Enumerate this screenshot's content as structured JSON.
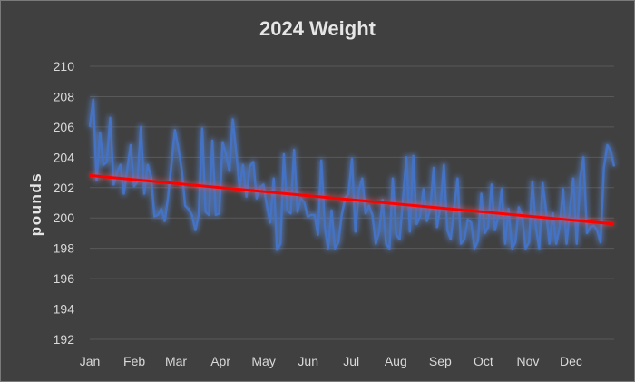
{
  "chart_data": {
    "type": "line",
    "title": "2024 Weight",
    "xlabel": "",
    "ylabel": "pounds",
    "ylim": [
      192,
      210
    ],
    "y_ticks": [
      192,
      194,
      196,
      198,
      200,
      202,
      204,
      206,
      208,
      210
    ],
    "x_ticks": [
      "Jan",
      "Feb",
      "Mar",
      "Apr",
      "May",
      "Jun",
      "Jul",
      "Aug",
      "Sep",
      "Oct",
      "Nov",
      "Dec"
    ],
    "x_domain_days": [
      1,
      366
    ],
    "grid": true,
    "legend": "none",
    "colors": {
      "background": "#404040",
      "series": "#4472c4",
      "trendline": "#ff0000",
      "grid": "#595959",
      "text": "#d9d9d9"
    },
    "series": [
      {
        "values": [
          206.0,
          207.8,
          202.5,
          205.6,
          203.5,
          203.7,
          206.6,
          202.2,
          203.0,
          203.5,
          201.6,
          203.2,
          204.8,
          202.1,
          202.4,
          206.0,
          201.6,
          203.5,
          202.7,
          200.1,
          200.2,
          200.6,
          199.8,
          201.4,
          203.6,
          205.8,
          204.6,
          203.2,
          200.8,
          200.6,
          200.2,
          199.2,
          200.2,
          205.9,
          200.4,
          200.2,
          205.1,
          200.2,
          200.3,
          205.0,
          204.2,
          203.1,
          206.5,
          204.3,
          202.0,
          203.5,
          201.4,
          203.4,
          203.7,
          201.3,
          202.0,
          202.2,
          200.8,
          199.7,
          202.6,
          197.9,
          198.3,
          204.2,
          200.5,
          200.3,
          204.5,
          200.4,
          201.3,
          201.0,
          200.1,
          200.2,
          200.2,
          198.9,
          203.8,
          199.4,
          198.0,
          200.5,
          198.0,
          198.4,
          200.2,
          201.3,
          201.6,
          203.9,
          199.1,
          201.8,
          202.6,
          200.3,
          200.8,
          200.2,
          198.3,
          199.1,
          201.2,
          198.3,
          198.0,
          202.6,
          198.9,
          198.6,
          201.3,
          204.0,
          199.1,
          204.1,
          199.6,
          200.1,
          201.9,
          199.8,
          200.6,
          203.3,
          199.4,
          200.8,
          203.5,
          199.2,
          198.6,
          200.6,
          202.6,
          198.3,
          198.6,
          199.9,
          199.7,
          198.0,
          198.5,
          201.6,
          199.0,
          199.4,
          202.2,
          199.2,
          200.1,
          201.9,
          198.3,
          200.6,
          198.0,
          198.4,
          200.7,
          200.1,
          198.0,
          198.4,
          202.4,
          199.4,
          198.0,
          202.3,
          200.5,
          198.3,
          200.3,
          198.3,
          199.4,
          201.9,
          198.3,
          200.5,
          202.6,
          198.3,
          202.6,
          204.0,
          199.0,
          199.4,
          199.5,
          199.2,
          198.4,
          203.3,
          204.8,
          204.4,
          203.4
        ]
      }
    ],
    "trendline": {
      "type": "linear",
      "start": 202.8,
      "end": 199.6,
      "color": "#ff0000"
    }
  }
}
